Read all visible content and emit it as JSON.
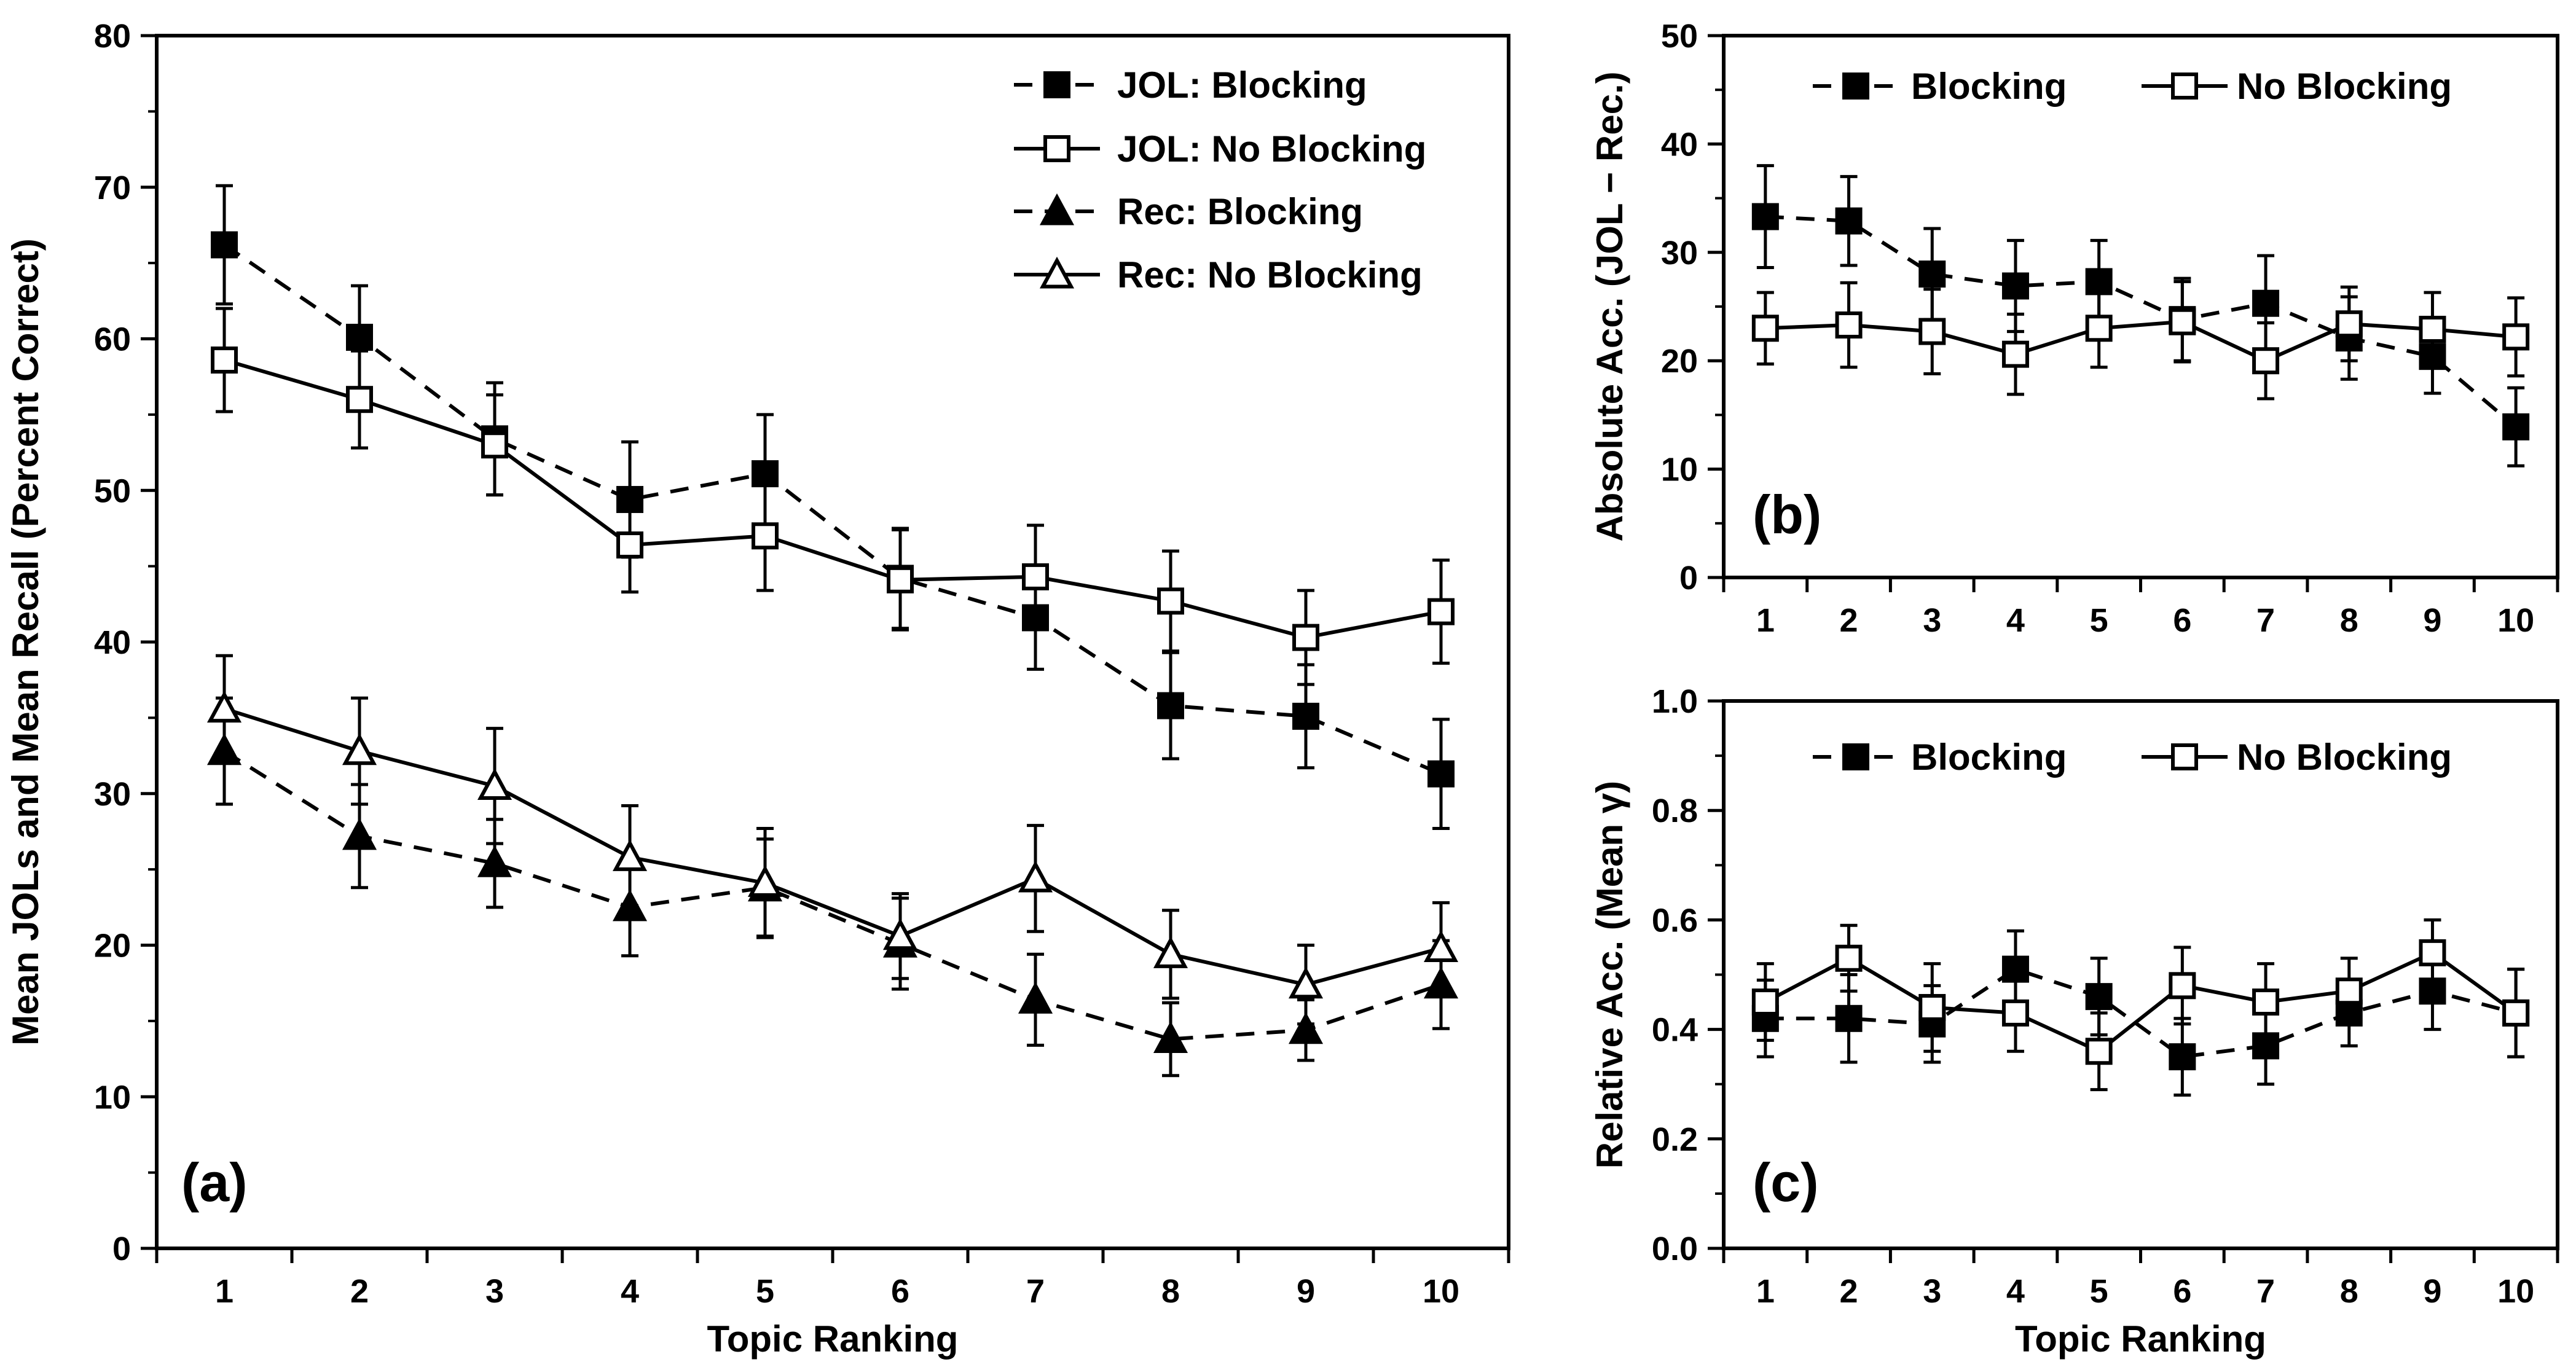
{
  "chart_data": [
    {
      "panel": "a",
      "type": "line",
      "panel_label": "(a)",
      "xlabel": "Topic Ranking",
      "ylabel": "Mean JOLs and Mean Recall (Percent Correct)",
      "x": [
        1,
        2,
        3,
        4,
        5,
        6,
        7,
        8,
        9,
        10
      ],
      "x_tick_labels": [
        "1",
        "2",
        "3",
        "4",
        "5",
        "6",
        "7",
        "8",
        "9",
        "10"
      ],
      "ylim": [
        0,
        80
      ],
      "y_ticks": [
        0,
        10,
        20,
        30,
        40,
        50,
        60,
        70,
        80
      ],
      "y_tick_labels": [
        "0",
        "10",
        "20",
        "30",
        "40",
        "50",
        "60",
        "70",
        "80"
      ],
      "legend_position": "top-right",
      "series": [
        {
          "name": "JOL: Blocking",
          "marker": "filled-square",
          "line": "dashed",
          "values": [
            66.2,
            60.1,
            53.4,
            49.4,
            51.1,
            44.2,
            41.6,
            35.8,
            35.1,
            31.3
          ],
          "errors": [
            3.9,
            3.4,
            3.7,
            3.8,
            3.9,
            3.3,
            3.4,
            3.5,
            3.4,
            3.6
          ]
        },
        {
          "name": "JOL: No Blocking",
          "marker": "open-square",
          "line": "solid",
          "values": [
            58.6,
            56.0,
            53.0,
            46.4,
            47.0,
            44.1,
            44.3,
            42.7,
            40.3,
            42.0
          ],
          "errors": [
            3.4,
            3.2,
            3.3,
            3.1,
            3.6,
            3.3,
            3.4,
            3.3,
            3.1,
            3.4
          ]
        },
        {
          "name": "Rec: Blocking",
          "marker": "filled-triangle",
          "line": "dashed",
          "values": [
            32.8,
            27.2,
            25.4,
            22.5,
            23.8,
            20.1,
            16.4,
            13.8,
            14.4,
            17.4
          ],
          "errors": [
            3.5,
            3.4,
            2.9,
            3.2,
            3.2,
            3.0,
            3.0,
            2.4,
            2.0,
            2.9
          ]
        },
        {
          "name": "Rec: No Blocking",
          "marker": "open-triangle",
          "line": "solid",
          "values": [
            35.6,
            32.8,
            30.5,
            25.8,
            24.1,
            20.6,
            24.4,
            19.4,
            17.4,
            19.8
          ],
          "errors": [
            3.5,
            3.5,
            3.8,
            3.4,
            3.6,
            2.8,
            3.5,
            2.9,
            2.6,
            3.0
          ]
        }
      ]
    },
    {
      "panel": "b",
      "type": "line",
      "panel_label": "(b)",
      "xlabel": "",
      "ylabel": "Absolute Acc. (JOL − Rec.)",
      "x": [
        1,
        2,
        3,
        4,
        5,
        6,
        7,
        8,
        9,
        10
      ],
      "x_tick_labels": [
        "1",
        "2",
        "3",
        "4",
        "5",
        "6",
        "7",
        "8",
        "9",
        "10"
      ],
      "ylim": [
        0,
        50
      ],
      "y_ticks": [
        0,
        10,
        20,
        30,
        40,
        50
      ],
      "y_tick_labels": [
        "0",
        "10",
        "20",
        "30",
        "40",
        "50"
      ],
      "legend_position": "top",
      "series": [
        {
          "name": "Blocking",
          "marker": "filled-square",
          "line": "dashed",
          "values": [
            33.3,
            32.9,
            28.0,
            26.9,
            27.3,
            23.8,
            25.3,
            22.1,
            20.4,
            13.9
          ],
          "errors": [
            4.7,
            4.1,
            4.2,
            4.2,
            3.8,
            3.8,
            4.4,
            3.8,
            3.4,
            3.6
          ]
        },
        {
          "name": "No Blocking",
          "marker": "open-square",
          "line": "solid",
          "values": [
            23.0,
            23.3,
            22.7,
            20.6,
            23.0,
            23.6,
            20.0,
            23.4,
            22.9,
            22.2
          ],
          "errors": [
            3.3,
            3.9,
            3.9,
            3.7,
            3.6,
            3.7,
            3.5,
            3.4,
            3.4,
            3.6
          ]
        }
      ]
    },
    {
      "panel": "c",
      "type": "line",
      "panel_label": "(c)",
      "xlabel": "Topic Ranking",
      "ylabel": "Relative Acc. (Mean γ)",
      "x": [
        1,
        2,
        3,
        4,
        5,
        6,
        7,
        8,
        9,
        10
      ],
      "x_tick_labels": [
        "1",
        "2",
        "3",
        "4",
        "5",
        "6",
        "7",
        "8",
        "9",
        "10"
      ],
      "ylim": [
        0,
        1
      ],
      "y_ticks": [
        0,
        0.2,
        0.4,
        0.6,
        0.8,
        1.0
      ],
      "y_tick_labels": [
        "0.0",
        "0.2",
        "0.4",
        "0.6",
        "0.8",
        "1.0"
      ],
      "legend_position": "top",
      "series": [
        {
          "name": "Blocking",
          "marker": "filled-square",
          "line": "dashed",
          "values": [
            0.42,
            0.42,
            0.41,
            0.51,
            0.46,
            0.35,
            0.37,
            0.43,
            0.47,
            0.43
          ],
          "errors": [
            0.07,
            0.08,
            0.07,
            0.07,
            0.07,
            0.07,
            0.07,
            0.06,
            0.07,
            0.08
          ]
        },
        {
          "name": "No Blocking",
          "marker": "open-square",
          "line": "solid",
          "values": [
            0.45,
            0.53,
            0.44,
            0.43,
            0.36,
            0.48,
            0.45,
            0.47,
            0.54,
            0.43
          ],
          "errors": [
            0.07,
            0.06,
            0.08,
            0.07,
            0.07,
            0.07,
            0.07,
            0.06,
            0.06,
            0.08
          ]
        }
      ]
    }
  ]
}
